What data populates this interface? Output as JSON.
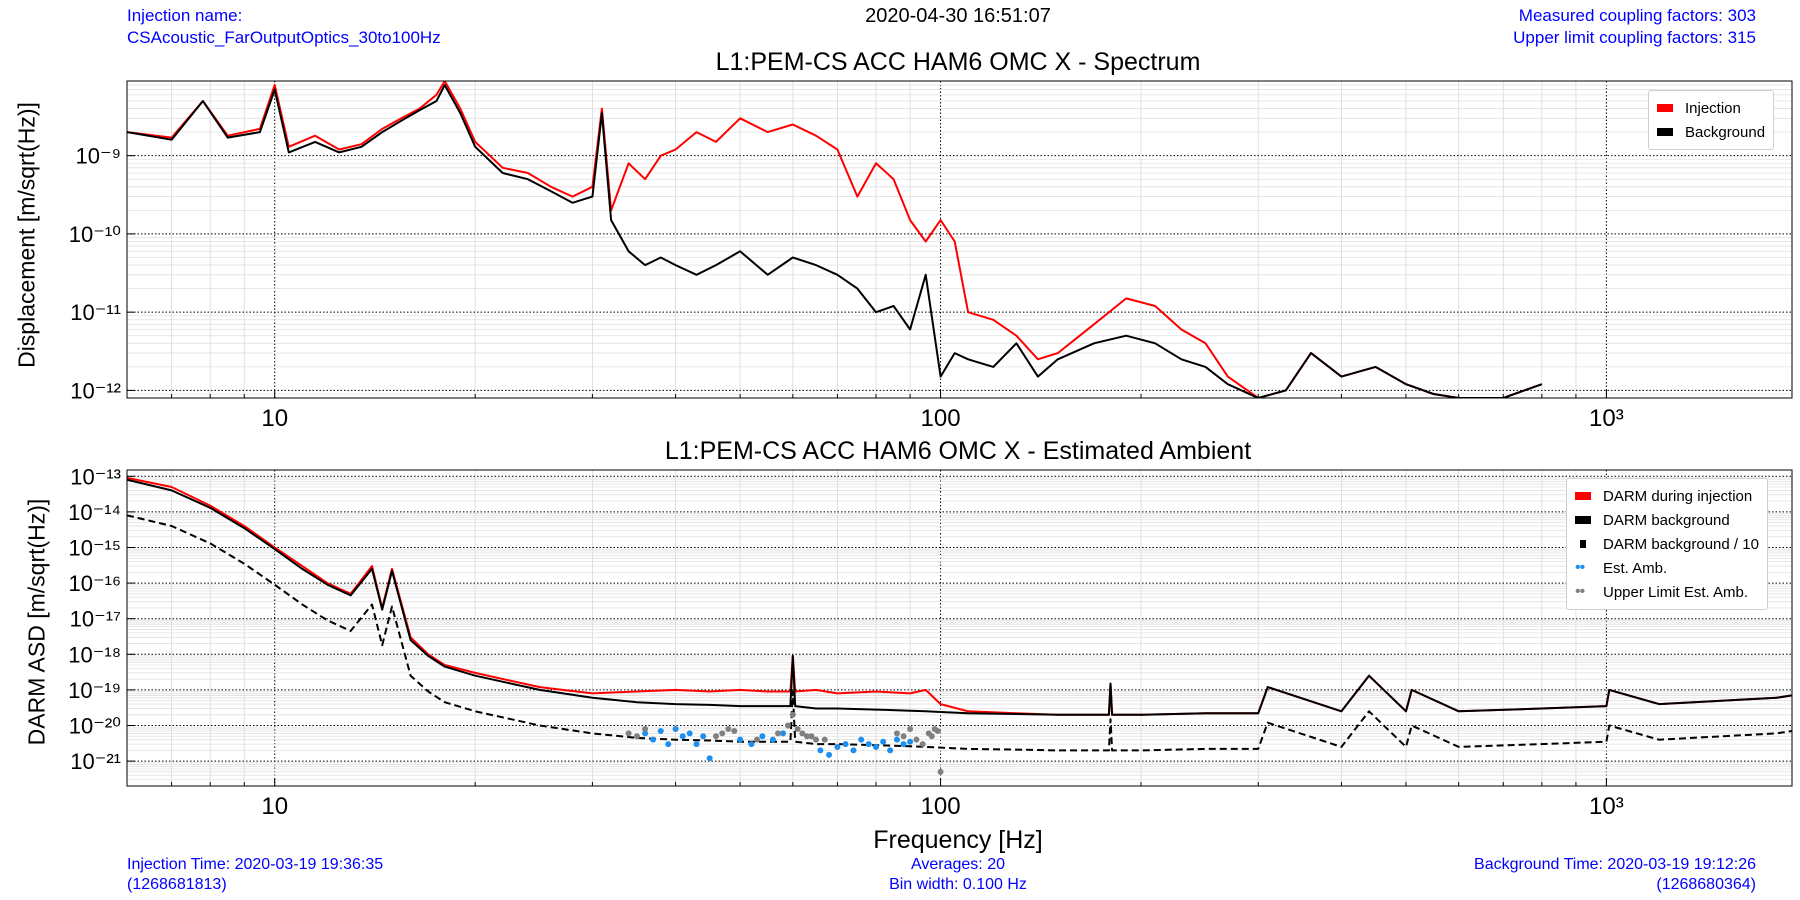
{
  "header": {
    "injection_label": "Injection name:",
    "injection_name": "CSAcoustic_FarOutputOptics_30to100Hz",
    "timestamp": "2020-04-30 16:51:07",
    "measured_coupling": "Measured coupling factors: 303",
    "upper_limit_coupling": "Upper limit coupling factors: 315"
  },
  "footer": {
    "injection_time": "Injection Time: 2020-03-19 19:36:35",
    "injection_gps": "(1268681813)",
    "averages": "Averages: 20",
    "bin_width": "Bin width: 0.100 Hz",
    "background_time": "Background Time: 2020-03-19 19:12:26",
    "background_gps": "(1268680364)"
  },
  "colors": {
    "injection": "#ff0000",
    "background": "#000000",
    "est_amb": "#1f8fef",
    "upper_limit": "#808080",
    "text_blue": "#0000ff"
  },
  "chart_data": [
    {
      "type": "line",
      "title": "L1:PEM-CS ACC HAM6 OMC X - Spectrum",
      "xlabel": "",
      "ylabel": "Displacement [m/sqrt(Hz)]",
      "xscale": "log",
      "yscale": "log",
      "xlim": [
        6,
        1900
      ],
      "ylim": [
        8e-13,
        9e-09
      ],
      "xticks": [
        10,
        100,
        1000
      ],
      "xtick_labels": [
        "10",
        "100",
        "10³"
      ],
      "yticks": [
        1e-12,
        1e-11,
        1e-10,
        1e-09
      ],
      "ytick_labels": [
        "10⁻¹²",
        "10⁻¹¹",
        "10⁻¹⁰",
        "10⁻⁹"
      ],
      "grid": true,
      "legend_position": "top-right",
      "legend": [
        "Injection",
        "Background"
      ],
      "series": [
        {
          "name": "Injection",
          "color": "#ff0000",
          "x": [
            6,
            7,
            7.8,
            8.5,
            9.5,
            10,
            10.5,
            11.5,
            12.5,
            13.5,
            14.5,
            15.5,
            16.5,
            17.5,
            18,
            19,
            20,
            22,
            24,
            26,
            28,
            30,
            31,
            32,
            34,
            36,
            38,
            40,
            43,
            46,
            50,
            55,
            60,
            65,
            70,
            75,
            80,
            85,
            90,
            95,
            100,
            105,
            110,
            120,
            130,
            140,
            150,
            170,
            190,
            210,
            230,
            250,
            270,
            300,
            330,
            360,
            400,
            450,
            500,
            550,
            600,
            700,
            800
          ],
          "y": [
            2e-09,
            1.7e-09,
            5e-09,
            1.8e-09,
            2.2e-09,
            8e-09,
            1.3e-09,
            1.8e-09,
            1.2e-09,
            1.4e-09,
            2.2e-09,
            3e-09,
            4e-09,
            6e-09,
            9e-09,
            4e-09,
            1.5e-09,
            7e-10,
            6e-10,
            4e-10,
            3e-10,
            4e-10,
            4e-09,
            2e-10,
            8e-10,
            5e-10,
            1e-09,
            1.2e-09,
            2e-09,
            1.5e-09,
            3e-09,
            2e-09,
            2.5e-09,
            1.8e-09,
            1.2e-09,
            3e-10,
            8e-10,
            5e-10,
            1.5e-10,
            8e-11,
            1.5e-10,
            8e-11,
            1e-11,
            8e-12,
            5e-12,
            2.5e-12,
            3e-12,
            7e-12,
            1.5e-11,
            1.2e-11,
            6e-12,
            4e-12,
            1.5e-12,
            8e-13,
            1e-12,
            3e-12,
            1.5e-12,
            2e-12,
            1.2e-12,
            9e-13,
            8e-13,
            8e-13,
            1.2e-12
          ]
        },
        {
          "name": "Background",
          "color": "#000000",
          "x": [
            6,
            7,
            7.8,
            8.5,
            9.5,
            10,
            10.5,
            11.5,
            12.5,
            13.5,
            14.5,
            15.5,
            16.5,
            17.5,
            18,
            19,
            20,
            22,
            24,
            26,
            28,
            30,
            31,
            32,
            34,
            36,
            38,
            40,
            43,
            46,
            50,
            55,
            60,
            65,
            70,
            75,
            80,
            85,
            90,
            95,
            100,
            105,
            110,
            120,
            130,
            140,
            150,
            170,
            190,
            210,
            230,
            250,
            270,
            300,
            330,
            360,
            400,
            450,
            500,
            550,
            600,
            700,
            800
          ],
          "y": [
            2e-09,
            1.6e-09,
            5e-09,
            1.7e-09,
            2e-09,
            7e-09,
            1.1e-09,
            1.5e-09,
            1.1e-09,
            1.3e-09,
            2e-09,
            2.8e-09,
            3.8e-09,
            5e-09,
            8e-09,
            3.5e-09,
            1.3e-09,
            6e-10,
            5e-10,
            3.5e-10,
            2.5e-10,
            3e-10,
            3.5e-09,
            1.5e-10,
            6e-11,
            4e-11,
            5e-11,
            4e-11,
            3e-11,
            4e-11,
            6e-11,
            3e-11,
            5e-11,
            4e-11,
            3e-11,
            2e-11,
            1e-11,
            1.2e-11,
            6e-12,
            3e-11,
            1.5e-12,
            3e-12,
            2.5e-12,
            2e-12,
            4e-12,
            1.5e-12,
            2.5e-12,
            4e-12,
            5e-12,
            4e-12,
            2.5e-12,
            2e-12,
            1.2e-12,
            8e-13,
            1e-12,
            3e-12,
            1.5e-12,
            2e-12,
            1.2e-12,
            9e-13,
            8e-13,
            8e-13,
            1.2e-12
          ]
        }
      ]
    },
    {
      "type": "line",
      "title": "L1:PEM-CS ACC HAM6 OMC X - Estimated Ambient",
      "xlabel": "Frequency [Hz]",
      "ylabel": "DARM ASD [m/sqrt(Hz)]",
      "xscale": "log",
      "yscale": "log",
      "xlim": [
        6,
        1900
      ],
      "ylim": [
        2e-22,
        1.5e-13
      ],
      "xticks": [
        10,
        100,
        1000
      ],
      "xtick_labels": [
        "10",
        "100",
        "10³"
      ],
      "yticks": [
        1e-21,
        1e-20,
        1e-19,
        1e-18,
        1e-17,
        1e-16,
        1e-15,
        1e-14,
        1e-13
      ],
      "ytick_labels": [
        "10⁻²¹",
        "10⁻²⁰",
        "10⁻¹⁹",
        "10⁻¹⁸",
        "10⁻¹⁷",
        "10⁻¹⁶",
        "10⁻¹⁵",
        "10⁻¹⁴",
        "10⁻¹³"
      ],
      "grid": true,
      "legend_position": "top-right",
      "legend": [
        "DARM during injection",
        "DARM background",
        "DARM background / 10",
        "Est. Amb.",
        "Upper Limit Est. Amb."
      ],
      "series": [
        {
          "name": "DARM during injection",
          "color": "#ff0000",
          "x": [
            6,
            7,
            8,
            9,
            10,
            11,
            12,
            13,
            14,
            14.5,
            15,
            16,
            17,
            18,
            20,
            25,
            30,
            35,
            40,
            45,
            50,
            55,
            59.5,
            60,
            60.5,
            65,
            70,
            80,
            90,
            95,
            100,
            110,
            130,
            150,
            179,
            180,
            181,
            200,
            250,
            300,
            310,
            400,
            440,
            500,
            510,
            600,
            800,
            1000,
            1010,
            1200,
            1500,
            1800,
            1900
          ],
          "y": [
            9e-14,
            5e-14,
            1.5e-14,
            4e-15,
            1e-15,
            3e-16,
            1e-16,
            5e-17,
            3e-16,
            2e-17,
            2.5e-16,
            3e-18,
            1e-18,
            5e-19,
            3e-19,
            1.2e-19,
            8e-20,
            9e-20,
            1e-19,
            9e-20,
            1e-19,
            9e-20,
            9e-20,
            9e-19,
            9e-20,
            1e-19,
            8e-20,
            9e-20,
            8e-20,
            1e-19,
            4e-20,
            2.5e-20,
            2.2e-20,
            2e-20,
            2e-20,
            1.5e-19,
            2e-20,
            2e-20,
            2.2e-20,
            2.2e-20,
            1.2e-19,
            2.5e-20,
            2.5e-19,
            2.5e-20,
            1e-19,
            2.5e-20,
            3e-20,
            3.5e-20,
            1e-19,
            4e-20,
            5e-20,
            6e-20,
            7e-20
          ]
        },
        {
          "name": "DARM background",
          "color": "#000000",
          "x": [
            6,
            7,
            8,
            9,
            10,
            11,
            12,
            13,
            14,
            14.5,
            15,
            16,
            17,
            18,
            20,
            25,
            30,
            35,
            40,
            45,
            50,
            55,
            59.5,
            60,
            60.5,
            65,
            70,
            80,
            90,
            95,
            100,
            110,
            130,
            150,
            179,
            180,
            181,
            200,
            250,
            300,
            310,
            400,
            440,
            500,
            510,
            600,
            800,
            1000,
            1010,
            1200,
            1500,
            1800,
            1900
          ],
          "y": [
            8e-14,
            4e-14,
            1.3e-14,
            3.5e-15,
            9e-16,
            2.5e-16,
            9e-17,
            4.5e-17,
            2.5e-16,
            1.8e-17,
            2.2e-16,
            2.5e-18,
            9e-19,
            4.5e-19,
            2.5e-19,
            1e-19,
            6e-20,
            4.5e-20,
            4e-20,
            3.8e-20,
            3.5e-20,
            3.5e-20,
            3.5e-20,
            9e-19,
            3.5e-20,
            3e-20,
            3e-20,
            2.8e-20,
            2.6e-20,
            2.5e-20,
            2.4e-20,
            2.2e-20,
            2.1e-20,
            2e-20,
            2e-20,
            1.5e-19,
            2e-20,
            2e-20,
            2.2e-20,
            2.2e-20,
            1.2e-19,
            2.5e-20,
            2.5e-19,
            2.5e-20,
            1e-19,
            2.5e-20,
            3e-20,
            3.5e-20,
            1e-19,
            4e-20,
            5e-20,
            6e-20,
            7e-20
          ]
        },
        {
          "name": "DARM background / 10",
          "color": "#000000",
          "x": [
            6,
            7,
            8,
            9,
            10,
            11,
            12,
            13,
            14,
            14.5,
            15,
            16,
            17,
            18,
            20,
            25,
            30,
            35,
            40,
            45,
            50,
            55,
            59.5,
            60,
            60.5,
            65,
            70,
            80,
            90,
            95,
            100,
            110,
            130,
            150,
            179,
            180,
            181,
            200,
            250,
            300,
            310,
            400,
            440,
            500,
            510,
            600,
            800,
            1000,
            1010,
            1200,
            1500,
            1800,
            1900
          ],
          "y": [
            8e-15,
            4e-15,
            1.3e-15,
            3.5e-16,
            9e-17,
            2.5e-17,
            9e-18,
            4.5e-18,
            2.5e-17,
            1.8e-18,
            2.2e-17,
            2.5e-19,
            9e-20,
            4.5e-20,
            2.5e-20,
            1e-20,
            6e-21,
            4.5e-21,
            4e-21,
            3.8e-21,
            3.5e-21,
            3.5e-21,
            3.5e-21,
            9e-20,
            3.5e-21,
            3e-21,
            3e-21,
            2.8e-21,
            2.6e-21,
            2.5e-21,
            2.4e-21,
            2.2e-21,
            2.1e-21,
            2e-21,
            2e-21,
            1.5e-20,
            2e-21,
            2e-21,
            2.2e-21,
            2.2e-21,
            1.2e-20,
            2.5e-21,
            2.5e-20,
            2.5e-21,
            1e-20,
            2.5e-21,
            3e-21,
            3.5e-21,
            1e-20,
            4e-21,
            5e-21,
            6e-21,
            7e-21
          ]
        },
        {
          "name": "Est. Amb.",
          "color": "#1f8fef",
          "x": [
            36,
            37,
            38,
            39,
            40,
            41,
            42,
            43,
            44,
            45,
            50,
            52,
            54,
            56,
            58,
            66,
            68,
            70,
            72,
            74,
            76,
            78,
            80,
            82,
            84,
            86,
            88,
            90
          ],
          "y": [
            6e-21,
            4e-21,
            7e-21,
            3e-21,
            8e-21,
            5e-21,
            6e-21,
            3e-21,
            5e-21,
            1.2e-21,
            4e-21,
            3e-21,
            5e-21,
            4e-21,
            6e-21,
            2e-21,
            1.5e-21,
            2.5e-21,
            3e-21,
            2e-21,
            4e-21,
            3e-21,
            2.5e-21,
            3.5e-21,
            2e-21,
            4e-21,
            3e-21,
            3.5e-21
          ]
        },
        {
          "name": "Upper Limit Est. Amb.",
          "color": "#808080",
          "x": [
            34,
            35,
            36,
            46,
            47,
            48,
            49,
            53,
            57,
            59,
            60,
            61,
            62,
            63,
            64,
            65,
            67,
            86,
            88,
            90,
            92,
            94,
            96,
            97,
            98,
            99,
            100
          ],
          "y": [
            6e-21,
            5e-21,
            8e-21,
            5e-21,
            6e-21,
            8e-21,
            7e-21,
            4e-21,
            6e-21,
            1e-20,
            2e-20,
            8e-21,
            6e-21,
            5e-21,
            5e-21,
            4e-21,
            4e-21,
            6e-21,
            5e-21,
            8e-21,
            4e-21,
            3e-21,
            6e-21,
            5e-21,
            8e-21,
            7e-21,
            5e-22
          ]
        }
      ]
    }
  ]
}
